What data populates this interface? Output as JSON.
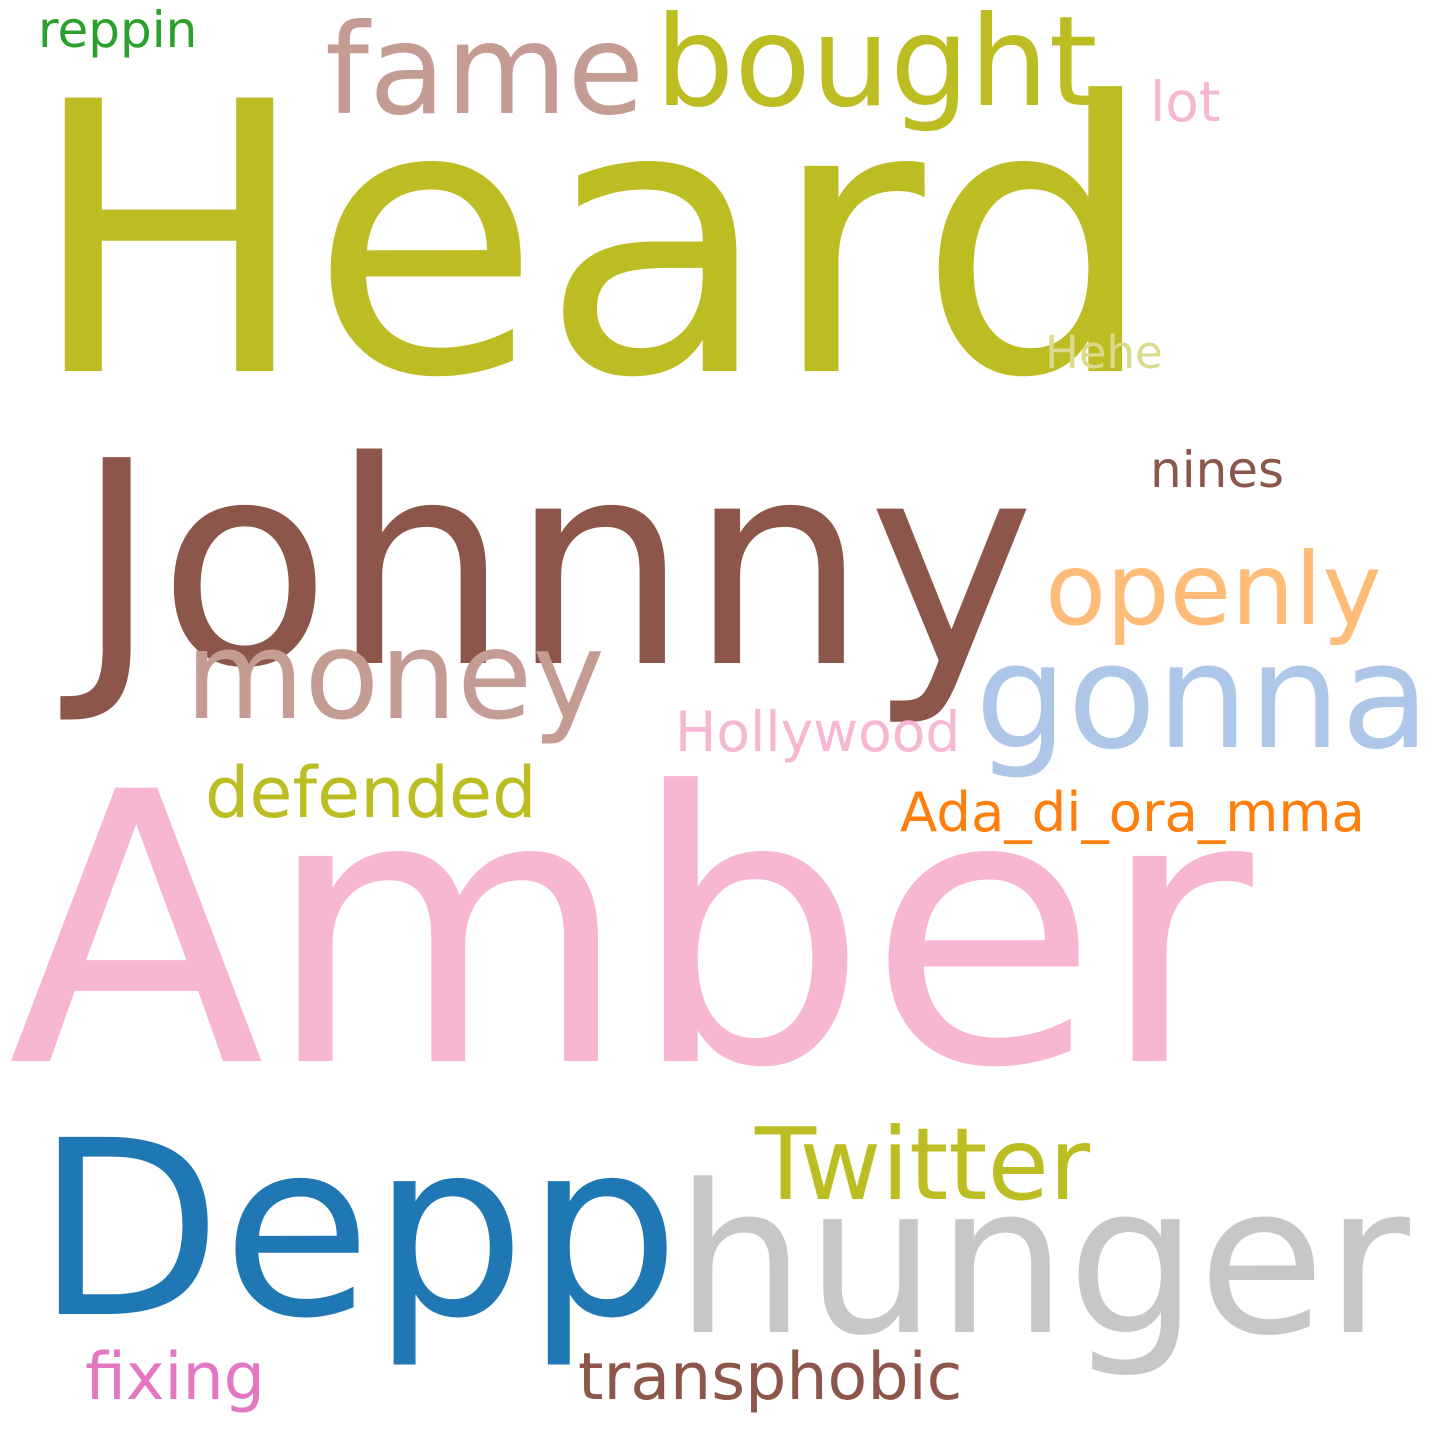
{
  "words": [
    {
      "text": "Heard",
      "color": "#bcbd22"
    },
    {
      "text": "Amber",
      "color": "#f7b6d2"
    },
    {
      "text": "Johnny",
      "color": "#8c564b"
    },
    {
      "text": "Depp",
      "color": "#1f77b4"
    },
    {
      "text": "hunger",
      "color": "#c7c7c7"
    },
    {
      "text": "fame",
      "color": "#c49c94"
    },
    {
      "text": "bought",
      "color": "#bcbd22"
    },
    {
      "text": "gonna",
      "color": "#aec7e8"
    },
    {
      "text": "money",
      "color": "#c49c94"
    },
    {
      "text": "openly",
      "color": "#ffbb78"
    },
    {
      "text": "Twitter",
      "color": "#bcbd22"
    },
    {
      "text": "defended",
      "color": "#bcbd22"
    },
    {
      "text": "transphobic",
      "color": "#8c564b"
    },
    {
      "text": "fixing",
      "color": "#e377c2"
    },
    {
      "text": "Ada_di_ora_mma",
      "color": "#ff7f0e"
    },
    {
      "text": "Hollywood",
      "color": "#f7b6d2"
    },
    {
      "text": "nines",
      "color": "#8c564b"
    },
    {
      "text": "Hehe",
      "color": "#dbdb8d"
    },
    {
      "text": "lot",
      "color": "#f7b6d2"
    },
    {
      "text": "reppin",
      "color": "#2ca02c"
    }
  ]
}
